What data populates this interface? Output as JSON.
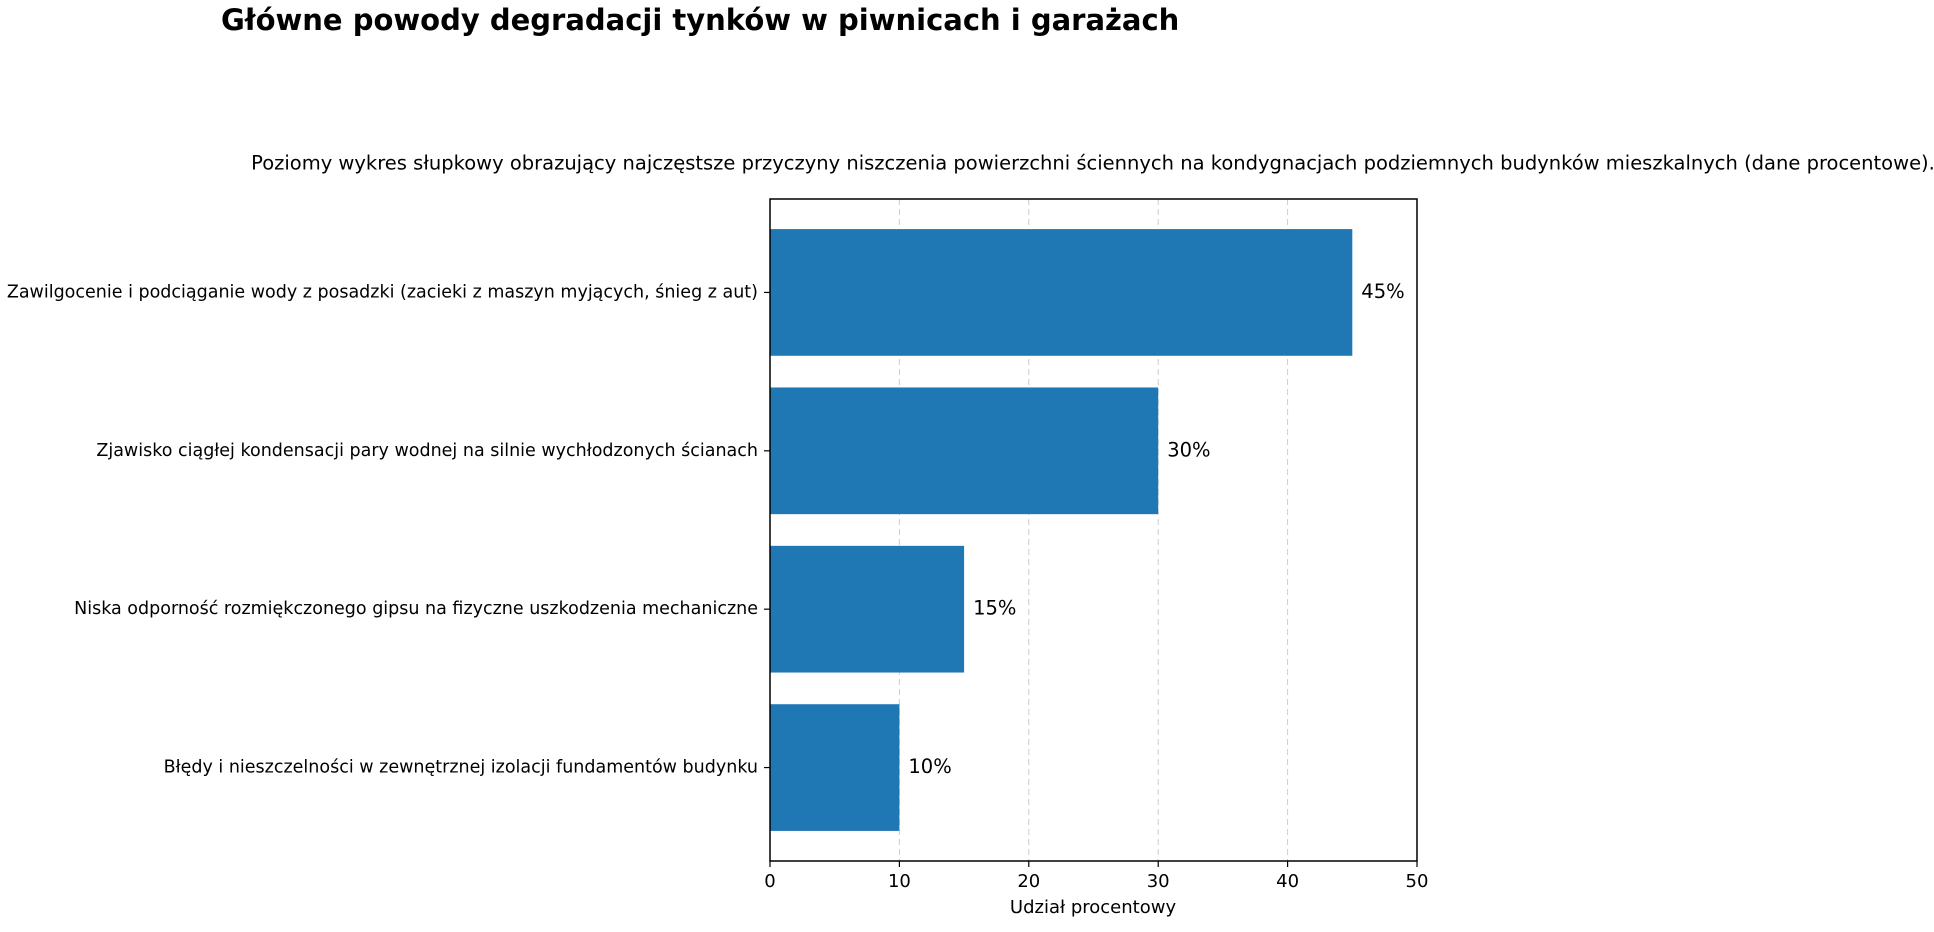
{
  "chart_data": {
    "type": "barh",
    "title": "Główne powody degradacji tynków w piwnicach i garażach",
    "subtitle": "Poziomy wykres słupkowy obrazujący najczęstsze przyczyny niszczenia powierzchni ściennych na kondygnacjach podziemnych budynków mieszkalnych (dane procentowe).",
    "categories": [
      "Zawilgocenie i podciąganie wody z posadzki (zacieki z maszyn myjących, śnieg z aut)",
      "Zjawisko ciągłej kondensacji pary wodnej na silnie wychłodzonych ścianach",
      "Niska odporność rozmiękczonego gipsu na fizyczne uszkodzenia mechaniczne",
      "Błędy i nieszczelności w zewnętrznej izolacji fundamentów budynku"
    ],
    "values": [
      45,
      30,
      15,
      10
    ],
    "value_labels": [
      "45%",
      "30%",
      "15%",
      "10%"
    ],
    "color": "#1f77b4",
    "xlabel": "Udział procentowy",
    "xlim": [
      0,
      50
    ],
    "xticks": [
      0,
      10,
      20,
      30,
      40,
      50
    ],
    "grid": true
  }
}
